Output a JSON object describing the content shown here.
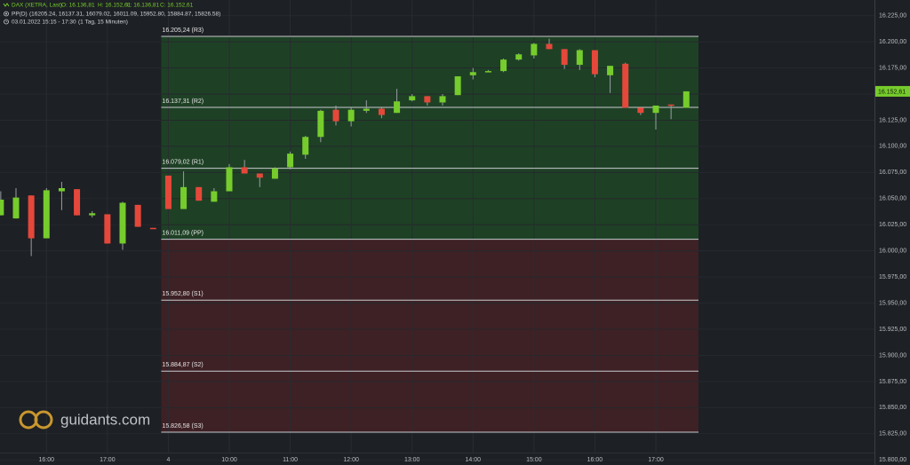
{
  "chart_data": {
    "type": "candlestick",
    "header": {
      "instrument": "DAX (XETRA, Last)",
      "open": "O: 16.136,81",
      "high": "H: 16.152,61",
      "low": "L: 16.136,81",
      "close": "C: 16.152,61",
      "indicator": "PP(D)",
      "indicator_values": "(16205.24, 16137.31, 16079.02, 16011.09, 15952.80, 15884.87, 15826.58)",
      "period": "03.01.2022 15:15 - 17:30",
      "interval": "(1 Tag, 15 Minuten)"
    },
    "watermark": "guidants.com",
    "up_color": "#76cc2c",
    "down_color": "#e5483a",
    "xlim": [
      -0.05,
      57.35
    ],
    "ylim": [
      15807,
      16240
    ],
    "xticks": [
      {
        "value": 3,
        "label": "16:00"
      },
      {
        "value": 7,
        "label": "17:00"
      },
      {
        "value": 11,
        "label": "4"
      },
      {
        "value": 15,
        "label": "10:00"
      },
      {
        "value": 19,
        "label": "11:00"
      },
      {
        "value": 23,
        "label": "12:00"
      },
      {
        "value": 27,
        "label": "13:00"
      },
      {
        "value": 31,
        "label": "14:00"
      },
      {
        "value": 35,
        "label": "15:00"
      },
      {
        "value": 39,
        "label": "16:00"
      },
      {
        "value": 43,
        "label": "17:00"
      }
    ],
    "yticks": [
      {
        "value": 16225,
        "label": "16.225,00"
      },
      {
        "value": 16200,
        "label": "16.200,00"
      },
      {
        "value": 16175,
        "label": "16.175,00"
      },
      {
        "value": 16150,
        "label": "16.150,00"
      },
      {
        "value": 16125,
        "label": "16.125,00"
      },
      {
        "value": 16100,
        "label": "16.100,00"
      },
      {
        "value": 16075,
        "label": "16.075,00"
      },
      {
        "value": 16050,
        "label": "16.050,00"
      },
      {
        "value": 16025,
        "label": "16.025,00"
      },
      {
        "value": 16000,
        "label": "16.000,00"
      },
      {
        "value": 15975,
        "label": "15.975,00"
      },
      {
        "value": 15950,
        "label": "15.950,00"
      },
      {
        "value": 15925,
        "label": "15.925,00"
      },
      {
        "value": 15900,
        "label": "15.900,00"
      },
      {
        "value": 15875,
        "label": "15.875,00"
      },
      {
        "value": 15850,
        "label": "15.850,00"
      },
      {
        "value": 15825,
        "label": "15.825,00"
      },
      {
        "value": 15800,
        "label": "15.800,00"
      }
    ],
    "grid": true,
    "last_price": {
      "value": 16152.61,
      "label": "16.152,61"
    },
    "pivot_start": 11,
    "pivot_end": 45.8,
    "levels": [
      {
        "value": 16205.24,
        "label": "16.205,24 (R3)"
      },
      {
        "value": 16137.31,
        "label": "16.137,31 (R2)"
      },
      {
        "value": 16079.02,
        "label": "16.079,02 (R1)"
      },
      {
        "value": 16011.09,
        "label": "16.011,09 (PP)"
      },
      {
        "value": 15952.8,
        "label": "15.952,80 (S1)"
      },
      {
        "value": 15884.87,
        "label": "15.884,87 (S2)"
      },
      {
        "value": 15826.58,
        "label": "15.826,58 (S3)"
      }
    ],
    "candles": [
      {
        "open": 16034,
        "high": 16057,
        "low": 16034,
        "close": 16049
      },
      {
        "open": 16031,
        "high": 16060,
        "low": 16031,
        "close": 16051
      },
      {
        "open": 16053,
        "high": 16053,
        "low": 15995,
        "close": 16012
      },
      {
        "open": 16012,
        "high": 16060,
        "low": 16012,
        "close": 16058
      },
      {
        "open": 16057,
        "high": 16066,
        "low": 16039,
        "close": 16060
      },
      {
        "open": 16059,
        "high": 16059,
        "low": 16034,
        "close": 16034
      },
      {
        "open": 16034,
        "high": 16038,
        "low": 16032,
        "close": 16036
      },
      {
        "open": 16035,
        "high": 16035,
        "low": 16007,
        "close": 16007
      },
      {
        "open": 16007,
        "high": 16047,
        "low": 16001,
        "close": 16046
      },
      {
        "open": 16044,
        "high": 16044,
        "low": 16023,
        "close": 16023
      },
      {
        "open": 16022,
        "high": 16022,
        "low": 16021,
        "close": 16021
      },
      {
        "open": 16072,
        "high": 16072,
        "low": 16040,
        "close": 16040
      },
      {
        "open": 16040,
        "high": 16076,
        "low": 16040,
        "close": 16061
      },
      {
        "open": 16061,
        "high": 16061,
        "low": 16048,
        "close": 16048
      },
      {
        "open": 16047,
        "high": 16060,
        "low": 16047,
        "close": 16057
      },
      {
        "open": 16057,
        "high": 16083,
        "low": 16057,
        "close": 16080
      },
      {
        "open": 16080,
        "high": 16087,
        "low": 16074,
        "close": 16074
      },
      {
        "open": 16074,
        "high": 16074,
        "low": 16061,
        "close": 16070
      },
      {
        "open": 16069,
        "high": 16080,
        "low": 16069,
        "close": 16079
      },
      {
        "open": 16080,
        "high": 16095,
        "low": 16078,
        "close": 16093
      },
      {
        "open": 16092,
        "high": 16110,
        "low": 16088,
        "close": 16109
      },
      {
        "open": 16109,
        "high": 16135,
        "low": 16104,
        "close": 16134
      },
      {
        "open": 16135,
        "high": 16139,
        "low": 16120,
        "close": 16124
      },
      {
        "open": 16124,
        "high": 16137,
        "low": 16119,
        "close": 16135
      },
      {
        "open": 16134,
        "high": 16144,
        "low": 16132,
        "close": 16136
      },
      {
        "open": 16136,
        "high": 16137,
        "low": 16127,
        "close": 16130
      },
      {
        "open": 16132,
        "high": 16155,
        "low": 16132,
        "close": 16143
      },
      {
        "open": 16144,
        "high": 16150,
        "low": 16143,
        "close": 16148
      },
      {
        "open": 16148,
        "high": 16148,
        "low": 16139,
        "close": 16142
      },
      {
        "open": 16142,
        "high": 16150,
        "low": 16139,
        "close": 16148
      },
      {
        "open": 16149,
        "high": 16167,
        "low": 16149,
        "close": 16167
      },
      {
        "open": 16168,
        "high": 16175,
        "low": 16164,
        "close": 16171
      },
      {
        "open": 16171,
        "high": 16173,
        "low": 16171,
        "close": 16172
      },
      {
        "open": 16172,
        "high": 16184,
        "low": 16171,
        "close": 16183
      },
      {
        "open": 16183,
        "high": 16189,
        "low": 16182,
        "close": 16188
      },
      {
        "open": 16187,
        "high": 16199,
        "low": 16184,
        "close": 16198
      },
      {
        "open": 16198,
        "high": 16203,
        "low": 16193,
        "close": 16193
      },
      {
        "open": 16193,
        "high": 16193,
        "low": 16174,
        "close": 16178
      },
      {
        "open": 16178,
        "high": 16193,
        "low": 16173,
        "close": 16192
      },
      {
        "open": 16192,
        "high": 16192,
        "low": 16166,
        "close": 16169
      },
      {
        "open": 16168,
        "high": 16177,
        "low": 16151,
        "close": 16177
      },
      {
        "open": 16179,
        "high": 16180,
        "low": 16137,
        "close": 16137
      },
      {
        "open": 16137,
        "high": 16137,
        "low": 16130,
        "close": 16132
      },
      {
        "open": 16132,
        "high": 16139,
        "low": 16116,
        "close": 16139
      },
      {
        "open": 16140,
        "high": 16140,
        "low": 16126,
        "close": 16139
      },
      {
        "open": 16136.81,
        "high": 16152.61,
        "low": 16136.81,
        "close": 16152.61
      }
    ]
  }
}
